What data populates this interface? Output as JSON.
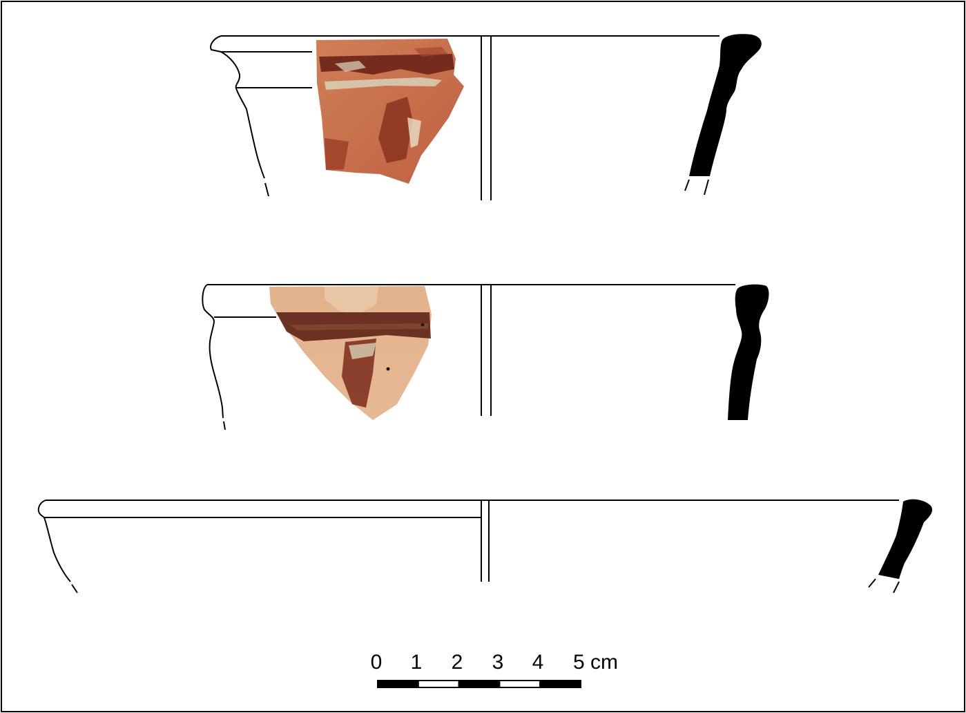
{
  "scale_bar": {
    "labels": [
      "0",
      "1",
      "2",
      "3",
      "4",
      "5 cm"
    ],
    "segments": 5,
    "segment_colors": [
      "#000000",
      "#ffffff",
      "#000000",
      "#ffffff",
      "#000000"
    ]
  },
  "colors": {
    "line": "#000000",
    "section_fill": "#000000",
    "sherd_clay_light": "#d9a57c",
    "sherd_clay_red": "#c56a45",
    "sherd_paint_dark": "#6b2418",
    "sherd_encrustation": "#d8d1b8"
  }
}
